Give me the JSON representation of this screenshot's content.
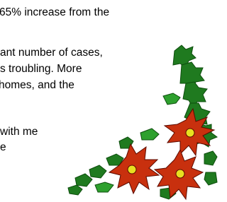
{
  "document": {
    "lines": [
      "65% increase from the",
      "ant number of cases,",
      "s troubling. More",
      " homes, and the",
      "with me",
      "e"
    ]
  }
}
